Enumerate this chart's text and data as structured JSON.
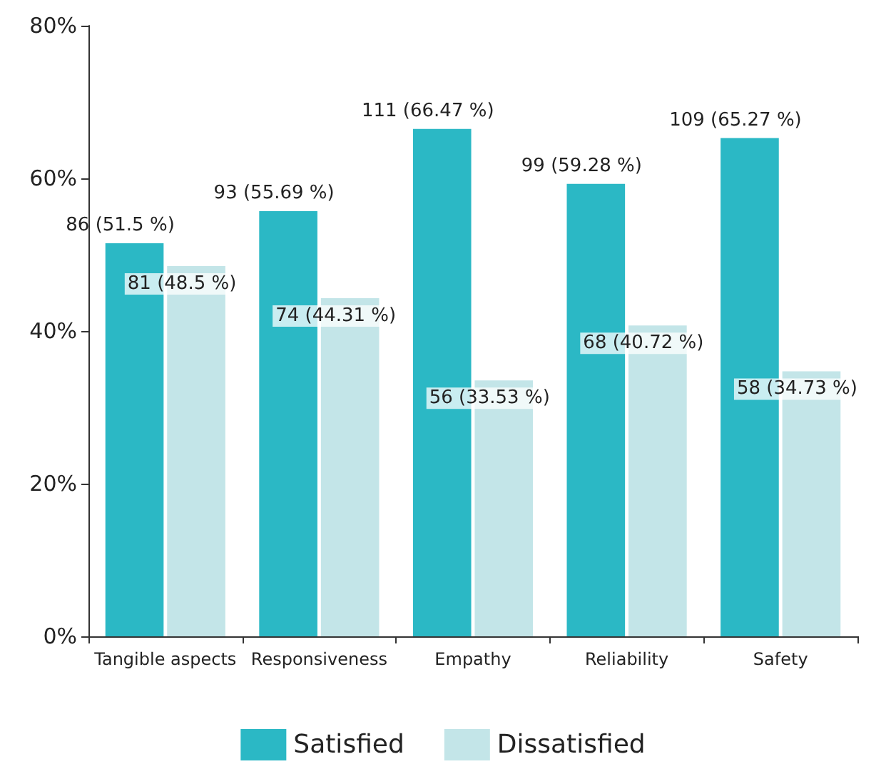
{
  "chart_data": {
    "type": "bar",
    "categories": [
      "Tangible aspects",
      "Responsiveness",
      "Empathy",
      "Reliability",
      "Safety"
    ],
    "series": [
      {
        "name": "Satisfied",
        "color": "#2bb8c5",
        "values": [
          51.5,
          55.69,
          66.47,
          59.28,
          65.27
        ],
        "value_labels": [
          "86 (51.5 %)",
          "93 (55.69 %)",
          "111 (66.47 %)",
          "99 (59.28 %)",
          "109 (65.27 %)"
        ]
      },
      {
        "name": "Dissatisfied",
        "color": "#c3e5e8",
        "values": [
          48.5,
          44.31,
          33.53,
          40.72,
          34.73
        ],
        "value_labels": [
          "81 (48.5 %)",
          "74 (44.31 %)",
          "56 (33.53 %)",
          "68 (40.72 %)",
          "58 (34.73 %)"
        ]
      }
    ],
    "ylim": [
      0,
      80
    ],
    "yticks": [
      {
        "value": 0,
        "label": "0%"
      },
      {
        "value": 20,
        "label": "20%"
      },
      {
        "value": 40,
        "label": "40%"
      },
      {
        "value": 60,
        "label": "60%"
      },
      {
        "value": 80,
        "label": "80%"
      }
    ],
    "grid": false,
    "legend": "bottom"
  }
}
